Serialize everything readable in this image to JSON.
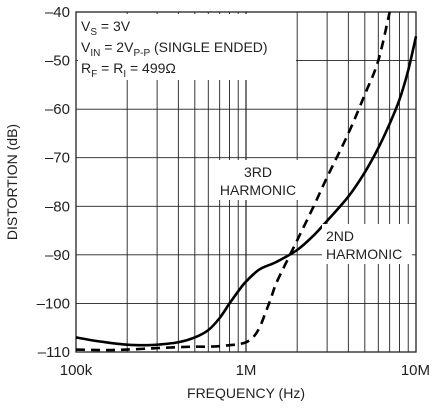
{
  "chart_data": {
    "type": "line",
    "title": "",
    "xlabel": "FREQUENCY (Hz)",
    "ylabel": "DISTORTION (dB)",
    "x_scale": "log",
    "xlim": [
      100000,
      10000000
    ],
    "ylim": [
      -110,
      -40
    ],
    "grid": true,
    "x_ticks": [
      {
        "value": 100000,
        "label": "100k"
      },
      {
        "value": 1000000,
        "label": "1M"
      },
      {
        "value": 10000000,
        "label": "10M"
      }
    ],
    "y_ticks": [
      {
        "value": -40,
        "label": "–40"
      },
      {
        "value": -50,
        "label": "–50"
      },
      {
        "value": -60,
        "label": "–60"
      },
      {
        "value": -70,
        "label": "–70"
      },
      {
        "value": -80,
        "label": "–80"
      },
      {
        "value": -90,
        "label": "–90"
      },
      {
        "value": -100,
        "label": "–100"
      },
      {
        "value": -110,
        "label": "–110"
      }
    ],
    "conditions": {
      "vs": {
        "main": "V",
        "sub": "S",
        "rest": " = 3V"
      },
      "vin": {
        "main": "V",
        "sub": "IN",
        "mid": " = 2V",
        "sub2": "P-P",
        "rest": " (SINGLE ENDED)"
      },
      "rf": {
        "main": "R",
        "sub": "F",
        "mid": " = R",
        "sub2": "I",
        "rest": " = 499Ω"
      }
    },
    "series": [
      {
        "name": "2ND HARMONIC",
        "style": "solid",
        "label_lines": [
          "2ND",
          "HARMONIC"
        ],
        "x": [
          100000,
          120000,
          150000,
          200000,
          250000,
          300000,
          400000,
          500000,
          600000,
          700000,
          800000,
          900000,
          1000000,
          1200000,
          1500000,
          2000000,
          2500000,
          3000000,
          4000000,
          5000000,
          6000000,
          7000000,
          8000000,
          9000000,
          10000000
        ],
        "values": [
          -107,
          -107.5,
          -108,
          -108.5,
          -108.6,
          -108.5,
          -108,
          -107,
          -105.5,
          -103,
          -100,
          -97.5,
          -95.5,
          -93,
          -91.5,
          -89,
          -86,
          -83,
          -78,
          -73,
          -68,
          -63,
          -58,
          -52,
          -45
        ]
      },
      {
        "name": "3RD HARMONIC",
        "style": "dashed",
        "label_lines": [
          "3RD",
          "HARMONIC"
        ],
        "x": [
          100000,
          150000,
          200000,
          300000,
          400000,
          500000,
          600000,
          700000,
          800000,
          900000,
          1000000,
          1100000,
          1200000,
          1300000,
          1400000,
          1500000,
          1700000,
          2000000,
          2500000,
          3000000,
          4000000,
          5000000,
          6000000,
          7000000
        ],
        "values": [
          -109.5,
          -109.6,
          -109.5,
          -109.2,
          -109,
          -108.9,
          -108.9,
          -108.8,
          -108.6,
          -108.4,
          -108,
          -107,
          -105,
          -102,
          -99,
          -96,
          -92,
          -87,
          -80,
          -74,
          -65,
          -57,
          -50,
          -40
        ]
      }
    ]
  }
}
